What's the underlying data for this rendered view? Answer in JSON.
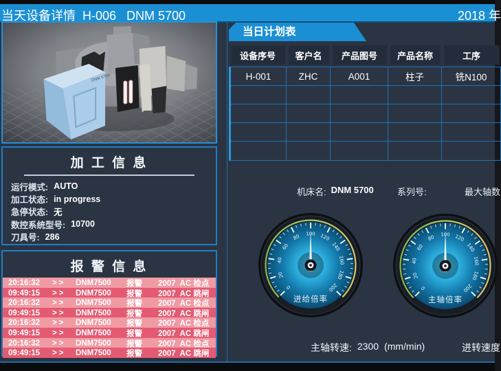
{
  "colors": {
    "topbar_blue": "#1b8fd4",
    "background": "#2b3442",
    "panel_border": "#1f7ec4",
    "table_line": "#1f72b8",
    "table_header_bg": "#222c3a",
    "alarm_light": "#f09aa4",
    "alarm_dark": "#e45a72",
    "gauge_face": "#2fb3e2",
    "arc_green": "#86bb50",
    "arc_yellow": "#d8ca6c"
  },
  "titlebar": {
    "title": "当天设备详情  H-006   DNM 5700",
    "date": "2018 年"
  },
  "machine_image": {
    "model_label": "DNM 5700"
  },
  "processing_info": {
    "title": "加 工 信 息",
    "fields": [
      {
        "label": "运行模式:",
        "value": "AUTO"
      },
      {
        "label": "加工状态:",
        "value": "in progress"
      },
      {
        "label": "急停状态:",
        "value": "无"
      },
      {
        "label": "数控系统型号:",
        "value": "10700"
      },
      {
        "label": "刀具号:",
        "value": "286"
      }
    ]
  },
  "alarm_info": {
    "title": "报 警 信 息",
    "rows": [
      {
        "time": "20:16:32",
        "arrow": ">>",
        "device": "DNM7500",
        "type": "报警",
        "detail": "2007  AC 检点",
        "tone": "light"
      },
      {
        "time": "09:49:15",
        "arrow": ">>",
        "device": "DNM7500",
        "type": "报警",
        "detail": "2007  AC 跳闸",
        "tone": "dark"
      },
      {
        "time": "20:16:32",
        "arrow": ">>",
        "device": "DNM7500",
        "type": "报警",
        "detail": "2007  AC 检点",
        "tone": "light"
      },
      {
        "time": "09:49:15",
        "arrow": ">>",
        "device": "DNM7500",
        "type": "报警",
        "detail": "2007  AC 跳闸",
        "tone": "dark"
      },
      {
        "time": "20:16:32",
        "arrow": ">>",
        "device": "DNM7500",
        "type": "报警",
        "detail": "2007  AC 检点",
        "tone": "light"
      },
      {
        "time": "09:49:15",
        "arrow": ">>",
        "device": "DNM7500",
        "type": "报警",
        "detail": "2007  AC 跳闸",
        "tone": "dark"
      },
      {
        "time": "20:16:32",
        "arrow": ">>",
        "device": "DNM7500",
        "type": "报警",
        "detail": "2007  AC 检点",
        "tone": "light"
      },
      {
        "time": "09:49:15",
        "arrow": ">>",
        "device": "DNM7500",
        "type": "报警",
        "detail": "2007  AC 跳闸",
        "tone": "dark"
      }
    ]
  },
  "plan_table": {
    "title": "当日计划表",
    "headers": [
      "设备序号",
      "客户名",
      "产品图号",
      "产品名称",
      "工序"
    ],
    "rows": [
      [
        "H-001",
        "ZHC",
        "A001",
        "柱子",
        "铣N100"
      ],
      [
        "",
        "",
        "",
        "",
        ""
      ],
      [
        "",
        "",
        "",
        "",
        ""
      ],
      [
        "",
        "",
        "",
        "",
        ""
      ],
      [
        "",
        "",
        "",
        "",
        ""
      ]
    ]
  },
  "machine_meta": {
    "name_label": "机床名:",
    "name_value": "DNM 5700",
    "serial_label": "系列号:",
    "serial_value": "",
    "max_axes_label": "最大轴数"
  },
  "gauges": [
    {
      "name": "feed-override",
      "label": "进给倍率",
      "min": 0,
      "max": 200,
      "major_step": 20,
      "minor_step": 5,
      "value": 100
    },
    {
      "name": "spindle-override",
      "label": "主轴倍率",
      "min": 0,
      "max": 200,
      "major_step": 20,
      "minor_step": 5,
      "value": 100
    }
  ],
  "bottom": {
    "spindle_speed_label": "主轴转速:",
    "spindle_speed_value": "2300",
    "spindle_speed_unit": "(mm/min)",
    "feed_speed_label": "进转速度"
  }
}
